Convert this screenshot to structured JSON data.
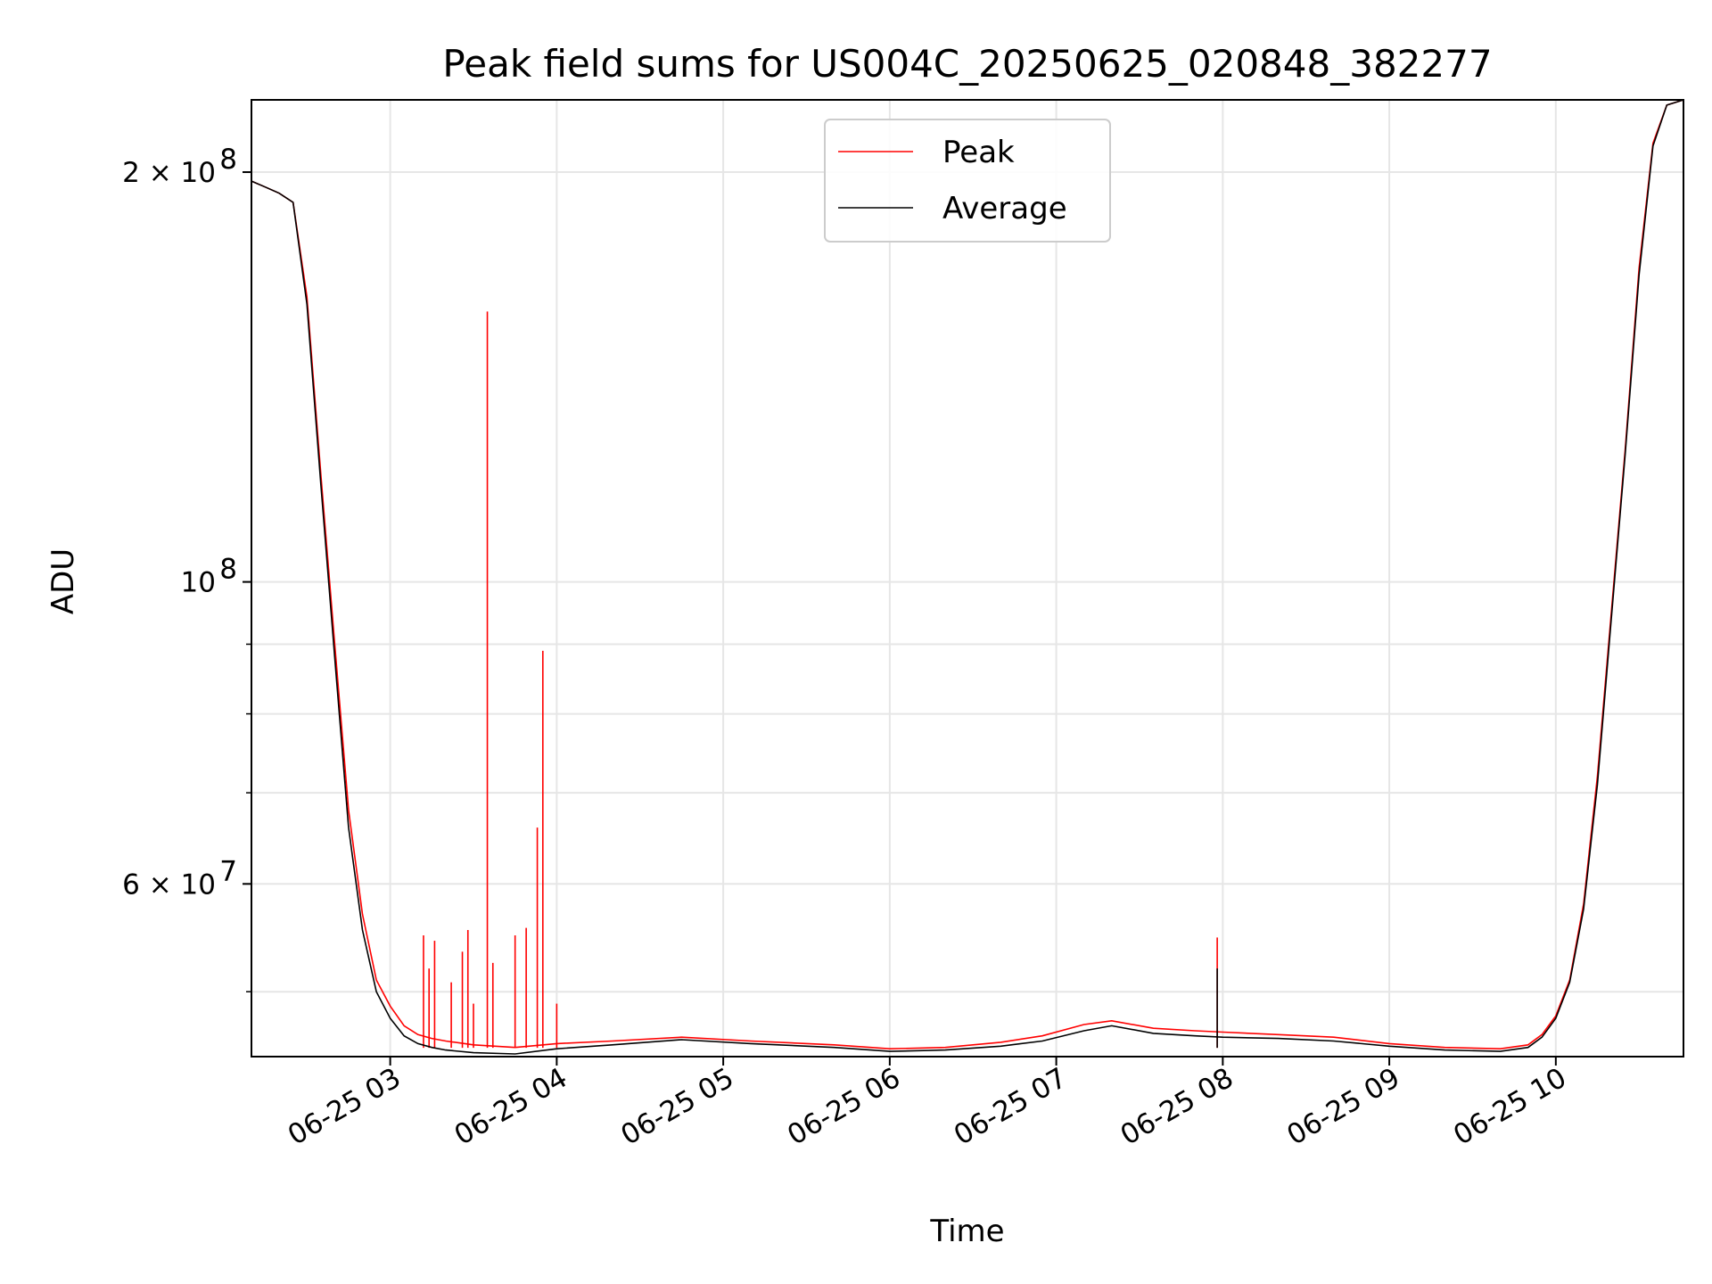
{
  "chart_data": {
    "type": "line",
    "title": "Peak field sums for US004C_20250625_020848_382277",
    "xlabel": "Time",
    "ylabel": "ADU",
    "yscale": "log",
    "xlim": [
      "06-25 02:10",
      "06-25 10:46"
    ],
    "ylim": [
      44800000,
      226000000
    ],
    "grid": true,
    "legend_placement": "top-center",
    "x_ticks": [
      "06-25 03",
      "06-25 04",
      "06-25 05",
      "06-25 06",
      "06-25 07",
      "06-25 08",
      "06-25 09",
      "06-25 10"
    ],
    "y_ticks_major": [
      {
        "value": 200000000,
        "base": "2 × 10",
        "exp": "8"
      },
      {
        "value": 100000000,
        "base": "10",
        "exp": "8"
      },
      {
        "value": 60000000,
        "base": "6 × 10",
        "exp": "7"
      }
    ],
    "y_ticks_minor": [
      50000000,
      70000000,
      80000000,
      90000000
    ],
    "series": [
      {
        "name": "Peak",
        "color": "#ff0000",
        "x": [
          "06-25 02:10",
          "06-25 02:15",
          "06-25 02:20",
          "06-25 02:25",
          "06-25 02:30",
          "06-25 02:35",
          "06-25 02:40",
          "06-25 02:45",
          "06-25 02:50",
          "06-25 02:55",
          "06-25 03:00",
          "06-25 03:05",
          "06-25 03:10",
          "06-25 03:15",
          "06-25 03:20",
          "06-25 03:30",
          "06-25 03:45",
          "06-25 04:00",
          "06-25 04:20",
          "06-25 04:45",
          "06-25 05:10",
          "06-25 05:40",
          "06-25 06:00",
          "06-25 06:20",
          "06-25 06:40",
          "06-25 06:55",
          "06-25 07:10",
          "06-25 07:20",
          "06-25 07:35",
          "06-25 07:50",
          "06-25 08:00",
          "06-25 08:20",
          "06-25 08:40",
          "06-25 09:00",
          "06-25 09:20",
          "06-25 09:40",
          "06-25 09:50",
          "06-25 09:55",
          "06-25 10:00",
          "06-25 10:05",
          "06-25 10:10",
          "06-25 10:15",
          "06-25 10:20",
          "06-25 10:25",
          "06-25 10:30",
          "06-25 10:35",
          "06-25 10:40",
          "06-25 10:46"
        ],
        "values": [
          197000000,
          195000000,
          193000000,
          190000000,
          162000000,
          120000000,
          90000000,
          68000000,
          57000000,
          51000000,
          48800000,
          47200000,
          46500000,
          46200000,
          46000000,
          45700000,
          45500000,
          45800000,
          46000000,
          46300000,
          46000000,
          45700000,
          45400000,
          45500000,
          45900000,
          46400000,
          47300000,
          47600000,
          47000000,
          46800000,
          46700000,
          46500000,
          46300000,
          45800000,
          45500000,
          45400000,
          45700000,
          46500000,
          48000000,
          51000000,
          58000000,
          72000000,
          95000000,
          125000000,
          170000000,
          210000000,
          224000000,
          226000000
        ],
        "spikes": [
          {
            "x": "06-25 03:12",
            "value": 55000000
          },
          {
            "x": "06-25 03:14",
            "value": 52000000
          },
          {
            "x": "06-25 03:16",
            "value": 54500000
          },
          {
            "x": "06-25 03:22",
            "value": 50800000
          },
          {
            "x": "06-25 03:26",
            "value": 53500000
          },
          {
            "x": "06-25 03:28",
            "value": 55500000
          },
          {
            "x": "06-25 03:30",
            "value": 49000000
          },
          {
            "x": "06-25 03:35",
            "value": 158000000
          },
          {
            "x": "06-25 03:37",
            "value": 52500000
          },
          {
            "x": "06-25 03:45",
            "value": 55000000
          },
          {
            "x": "06-25 03:49",
            "value": 55700000
          },
          {
            "x": "06-25 03:53",
            "value": 66000000
          },
          {
            "x": "06-25 03:55",
            "value": 89000000
          },
          {
            "x": "06-25 04:00",
            "value": 49000000
          },
          {
            "x": "06-25 07:58",
            "value": 54800000
          }
        ]
      },
      {
        "name": "Average",
        "color": "#000000",
        "x": [
          "06-25 02:10",
          "06-25 02:15",
          "06-25 02:20",
          "06-25 02:25",
          "06-25 02:30",
          "06-25 02:35",
          "06-25 02:40",
          "06-25 02:45",
          "06-25 02:50",
          "06-25 02:55",
          "06-25 03:00",
          "06-25 03:05",
          "06-25 03:10",
          "06-25 03:15",
          "06-25 03:20",
          "06-25 03:30",
          "06-25 03:45",
          "06-25 04:00",
          "06-25 04:20",
          "06-25 04:45",
          "06-25 05:10",
          "06-25 05:40",
          "06-25 06:00",
          "06-25 06:20",
          "06-25 06:40",
          "06-25 06:55",
          "06-25 07:10",
          "06-25 07:20",
          "06-25 07:35",
          "06-25 07:50",
          "06-25 08:00",
          "06-25 08:20",
          "06-25 08:40",
          "06-25 09:00",
          "06-25 09:20",
          "06-25 09:40",
          "06-25 09:50",
          "06-25 09:55",
          "06-25 10:00",
          "06-25 10:05",
          "06-25 10:10",
          "06-25 10:15",
          "06-25 10:20",
          "06-25 10:25",
          "06-25 10:30",
          "06-25 10:35",
          "06-25 10:40",
          "06-25 10:46"
        ],
        "values": [
          197000000,
          195000000,
          193000000,
          190000000,
          160000000,
          118000000,
          88000000,
          66000000,
          55500000,
          50000000,
          47800000,
          46400000,
          45800000,
          45500000,
          45300000,
          45100000,
          45000000,
          45400000,
          45700000,
          46100000,
          45800000,
          45500000,
          45200000,
          45300000,
          45600000,
          46000000,
          46800000,
          47200000,
          46600000,
          46400000,
          46300000,
          46200000,
          46000000,
          45600000,
          45300000,
          45200000,
          45500000,
          46300000,
          47800000,
          50800000,
          57500000,
          71000000,
          94000000,
          124000000,
          168000000,
          209000000,
          224000000,
          226000000
        ],
        "spikes": [
          {
            "x": "06-25 07:58",
            "value": 52000000
          }
        ]
      }
    ]
  }
}
